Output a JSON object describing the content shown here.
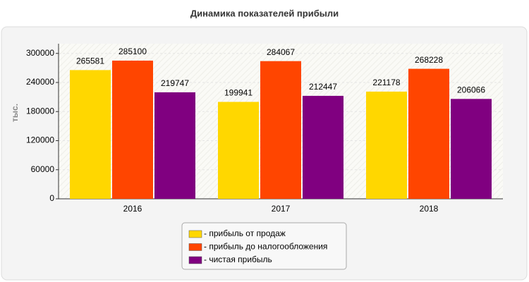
{
  "chart_data": {
    "type": "bar",
    "title": "Динамика показателей прибыли",
    "y_label": "тыс.",
    "categories": [
      "2016",
      "2017",
      "2018"
    ],
    "series": [
      {
        "name": "- прибыль от продаж",
        "color": "#ffd700",
        "values": [
          265581,
          199941,
          221178
        ]
      },
      {
        "name": "- прибыль до налогообложения",
        "color": "#ff4500",
        "values": [
          285100,
          284067,
          268228
        ]
      },
      {
        "name": "- чистая прибыль",
        "color": "#800080",
        "values": [
          219747,
          212447,
          206066
        ]
      }
    ],
    "ylim": [
      0,
      320000
    ],
    "yticks": [
      0,
      60000,
      120000,
      180000,
      240000,
      300000
    ],
    "grid": true
  }
}
